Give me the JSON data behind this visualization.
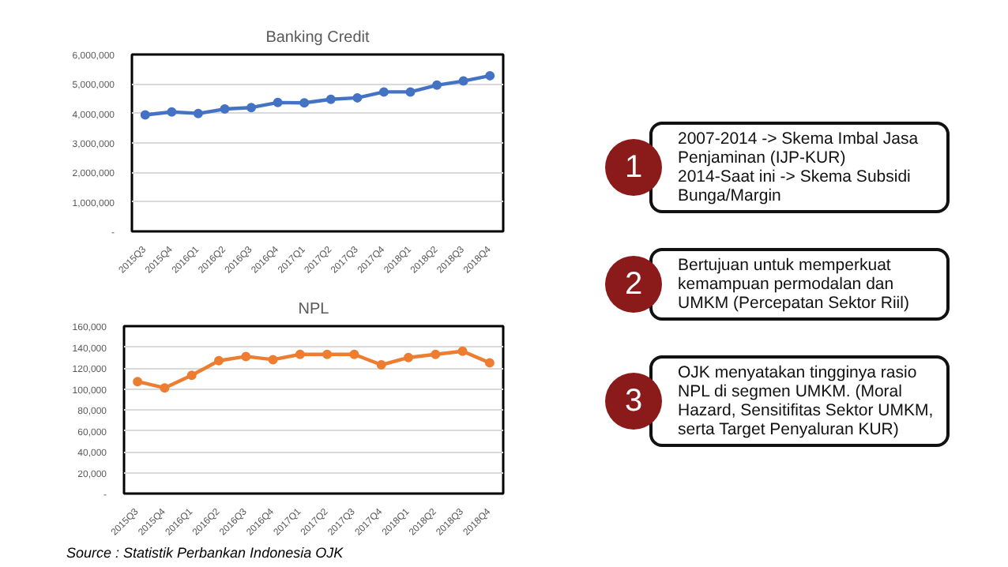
{
  "chart_data": [
    {
      "type": "line",
      "title": "Banking Credit",
      "categories": [
        "2015Q3",
        "2015Q4",
        "2016Q1",
        "2016Q2",
        "2016Q3",
        "2016Q4",
        "2017Q1",
        "2017Q2",
        "2017Q3",
        "2017Q4",
        "2018Q1",
        "2018Q2",
        "2018Q3",
        "2018Q4"
      ],
      "series": [
        {
          "color": "#4472c4",
          "values": [
            3950000,
            4050000,
            4000000,
            4150000,
            4200000,
            4370000,
            4360000,
            4480000,
            4530000,
            4730000,
            4730000,
            4960000,
            5100000,
            5280000
          ]
        }
      ],
      "ylim": [
        0,
        6000000
      ],
      "yticks": [
        {
          "value": 0,
          "label": "-"
        },
        {
          "value": 1000000,
          "label": "1,000,000"
        },
        {
          "value": 2000000,
          "label": "2,000,000"
        },
        {
          "value": 3000000,
          "label": "3,000,000"
        },
        {
          "value": 4000000,
          "label": "4,000,000"
        },
        {
          "value": 5000000,
          "label": "5,000,000"
        },
        {
          "value": 6000000,
          "label": "6,000,000"
        }
      ],
      "grid": "y",
      "marker": "circle"
    },
    {
      "type": "line",
      "title": "NPL",
      "categories": [
        "2015Q3",
        "2015Q4",
        "2016Q1",
        "2016Q2",
        "2016Q3",
        "2016Q4",
        "2017Q1",
        "2017Q2",
        "2017Q3",
        "2017Q4",
        "2018Q1",
        "2018Q2",
        "2018Q3",
        "2018Q4"
      ],
      "series": [
        {
          "color": "#ed7d31",
          "values": [
            107000,
            101000,
            113000,
            127000,
            131000,
            128000,
            133000,
            133000,
            133000,
            123000,
            130000,
            133000,
            136000,
            125000
          ]
        }
      ],
      "ylim": [
        0,
        160000
      ],
      "yticks": [
        {
          "value": 0,
          "label": "-"
        },
        {
          "value": 20000,
          "label": "20,000"
        },
        {
          "value": 40000,
          "label": "40,000"
        },
        {
          "value": 60000,
          "label": "60,000"
        },
        {
          "value": 80000,
          "label": "80,000"
        },
        {
          "value": 100000,
          "label": "100,000"
        },
        {
          "value": 120000,
          "label": "120,000"
        },
        {
          "value": 140000,
          "label": "140,000"
        },
        {
          "value": 160000,
          "label": "160,000"
        }
      ],
      "grid": "y",
      "marker": "circle",
      "annotations": [
        "Source : Statistik Perbankan Indonesia OJK"
      ]
    },
    {
      "type": "other",
      "annotations": [
        "1",
        "2007-2014 -> Skema Imbal Jasa Penjaminan (IJP-KUR)",
        "2014-Saat ini -> Skema Subsidi Bunga/Margin",
        "2",
        "Bertujuan untuk memperkuat kemampuan permodalan dan UMKM (Percepatan Sektor Riil)",
        "3",
        "OJK menyatakan tingginya rasio NPL di segmen UMKM. (Moral Hazard, Sensitifitas Sektor UMKM, serta Target Penyaluran KUR)"
      ]
    }
  ]
}
